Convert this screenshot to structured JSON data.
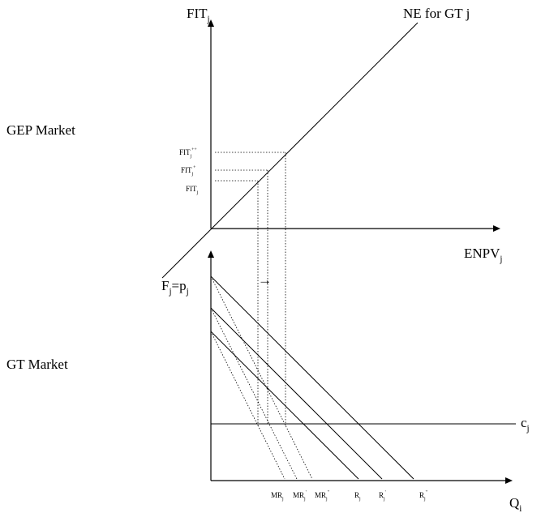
{
  "sections": {
    "gep_market": "GEP Market",
    "gt_market": "GT Market"
  },
  "upper_panel": {
    "y_axis": {
      "main": "FIT",
      "sub": "j"
    },
    "x_axis": {
      "main": "ENPV",
      "sub": "j"
    },
    "ne_curve": "NE for GT j",
    "fit_levels": [
      {
        "main": "FIT",
        "sub": "j",
        "sup": ""
      },
      {
        "main": "FIT",
        "sub": "j",
        "sup": "+"
      },
      {
        "main": "FIT",
        "sub": "j",
        "sup": "++"
      }
    ]
  },
  "lower_panel": {
    "y_axis": {
      "main": "F",
      "sub": "j",
      "mid": "=p",
      "sub2": "j"
    },
    "x_axis": {
      "main": "Q",
      "sub": "i"
    },
    "cost_line": {
      "main": "c",
      "sub": "j"
    },
    "shift_arrow": "→",
    "mr_labels": [
      {
        "main": "MR",
        "sub": "j",
        "sup": ""
      },
      {
        "main": "MR",
        "sub": "j",
        "sup": "'"
      },
      {
        "main": "MR",
        "sub": "j",
        "sup": "''"
      }
    ],
    "r_labels": [
      {
        "main": "R",
        "sub": "j",
        "sup": ""
      },
      {
        "main": "R",
        "sub": "j",
        "sup": "'"
      },
      {
        "main": "R",
        "sub": "j",
        "sup": "''"
      }
    ]
  }
}
